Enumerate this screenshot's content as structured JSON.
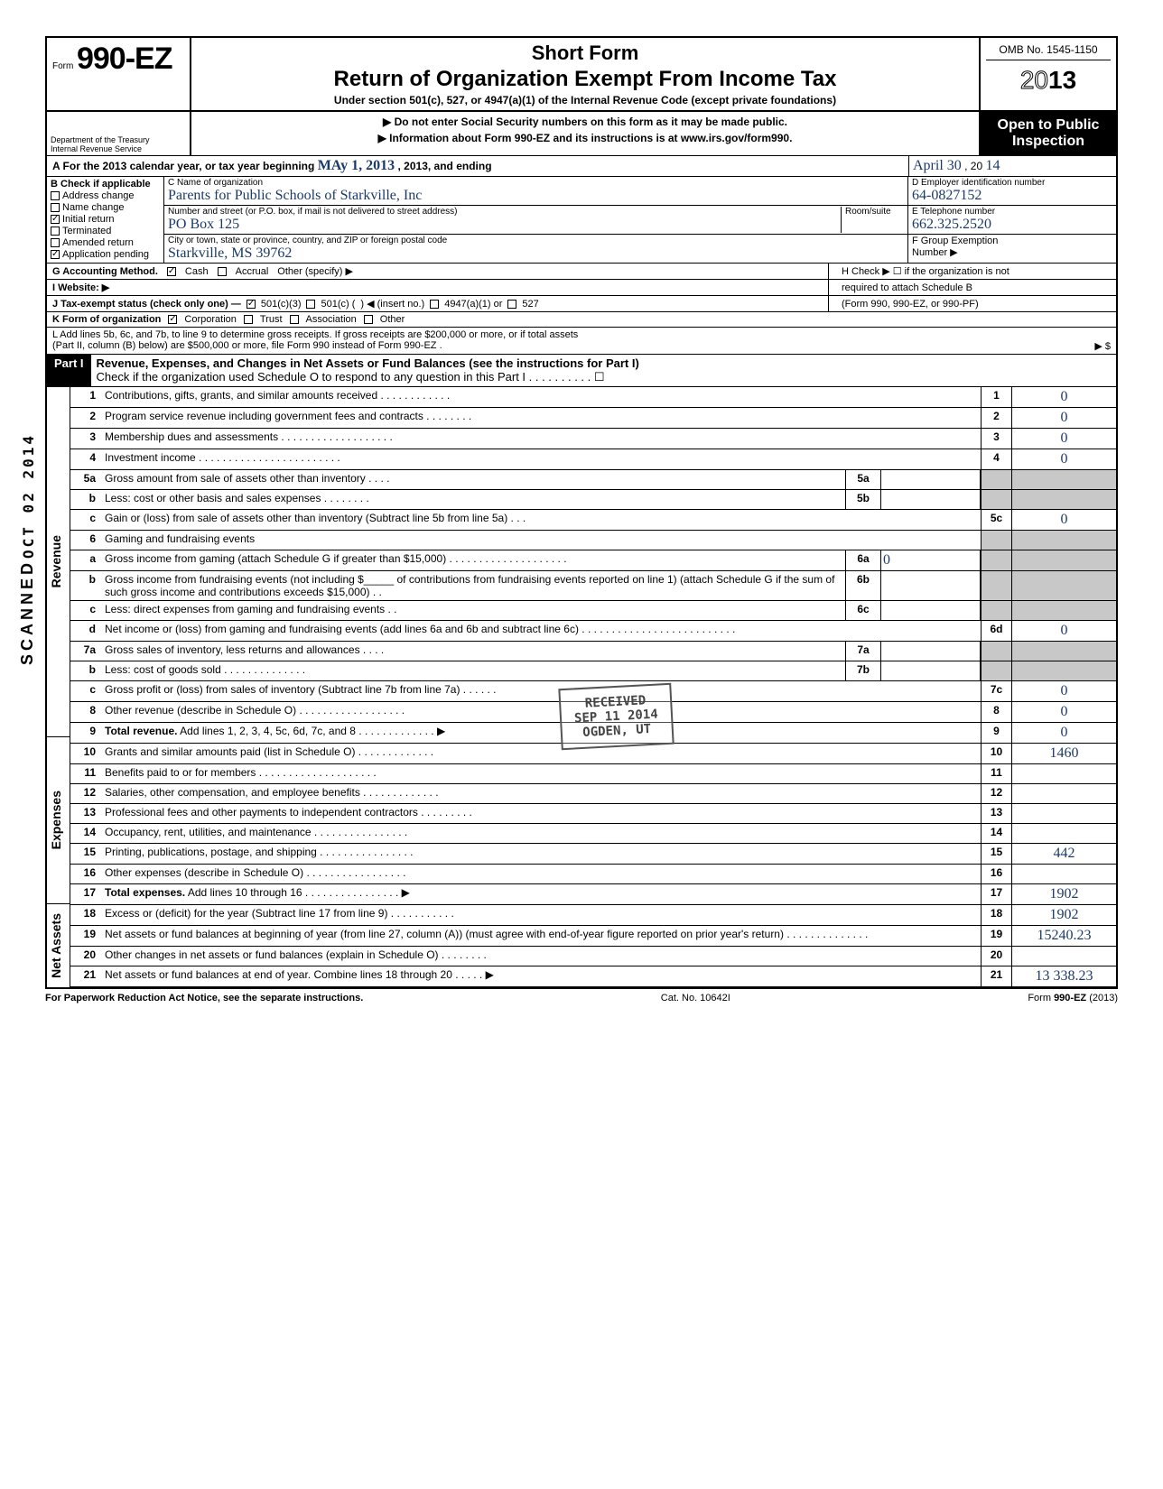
{
  "header": {
    "form_prefix": "Form",
    "form_number": "990-EZ",
    "short_form": "Short Form",
    "main_title": "Return of Organization Exempt From Income Tax",
    "subtitle": "Under section 501(c), 527, or 4947(a)(1) of the Internal Revenue Code (except private foundations)",
    "omb": "OMB No. 1545-1150",
    "year": "2013",
    "do_not_enter": "▶ Do not enter Social Security numbers on this form as it may be made public.",
    "info_about": "▶ Information about Form 990-EZ and its instructions is at www.irs.gov/form990.",
    "dept1": "Department of the Treasury",
    "dept2": "Internal Revenue Service",
    "open1": "Open to Public",
    "open2": "Inspection"
  },
  "section_a": {
    "label": "A For the 2013 calendar year, or tax year beginning",
    "begin_hw": "MAy 1, 2013",
    "mid": ", 2013, and ending",
    "end_hw": "April 30",
    "end_year": ", 20",
    "end_year_hw": "14"
  },
  "section_b": {
    "header": "B Check if applicable",
    "items": [
      {
        "label": "Address change",
        "checked": false
      },
      {
        "label": "Name change",
        "checked": false
      },
      {
        "label": "Initial return",
        "checked": true
      },
      {
        "label": "Terminated",
        "checked": false
      },
      {
        "label": "Amended return",
        "checked": false
      },
      {
        "label": "Application pending",
        "checked": true
      }
    ]
  },
  "section_c": {
    "name_label": "C Name of organization",
    "name_hw": "Parents for Public Schools of Starkville, Inc",
    "addr_label": "Number and street (or P.O. box, if mail is not delivered to street address)",
    "room_label": "Room/suite",
    "addr_hw": "PO Box 125",
    "city_label": "City or town, state or province, country, and ZIP or foreign postal code",
    "city_hw": "Starkville, MS 39762"
  },
  "section_d": {
    "label": "D Employer identification number",
    "hw": "64-0827152"
  },
  "section_e": {
    "label": "E Telephone number",
    "hw": "662.325.2520"
  },
  "section_f": {
    "label": "F Group Exemption",
    "label2": "Number ▶"
  },
  "section_g": {
    "label": "G Accounting Method.",
    "cash": "Cash",
    "accrual": "Accrual",
    "other": "Other (specify) ▶"
  },
  "section_h": {
    "line1": "H Check ▶ ☐ if the organization is not",
    "line2": "required to attach Schedule B",
    "line3": "(Form 990, 990-EZ, or 990-PF)"
  },
  "section_i": {
    "label": "I Website: ▶"
  },
  "section_j": {
    "label": "J Tax-exempt status (check only one) —",
    "opt1": "501(c)(3)",
    "opt2": "501(c) (",
    "opt2b": ") ◀ (insert no.)",
    "opt3": "4947(a)(1) or",
    "opt4": "527"
  },
  "section_k": {
    "label": "K Form of organization",
    "corp": "Corporation",
    "trust": "Trust",
    "assoc": "Association",
    "other": "Other"
  },
  "section_l": {
    "line1": "L Add lines 5b, 6c, and 7b, to line 9 to determine gross receipts. If gross receipts are $200,000 or more, or if total assets",
    "line2": "(Part II, column (B) below) are $500,000 or more, file Form 990 instead of Form 990-EZ .",
    "arrow": "▶ $"
  },
  "part1": {
    "label": "Part I",
    "title": "Revenue, Expenses, and Changes in Net Assets or Fund Balances (see the instructions for Part I)",
    "check": "Check if the organization used Schedule O to respond to any question in this Part I . . . . . . . . . . ☐"
  },
  "side_labels": {
    "revenue": "Revenue",
    "expenses": "Expenses",
    "netassets": "Net Assets"
  },
  "lines": [
    {
      "n": "1",
      "desc": "Contributions, gifts, grants, and similar amounts received . . . . . . . . . . . .",
      "box": "1",
      "val": "0"
    },
    {
      "n": "2",
      "desc": "Program service revenue including government fees and contracts . . . . . . . .",
      "box": "2",
      "val": "0"
    },
    {
      "n": "3",
      "desc": "Membership dues and assessments . . . . . . . . . . . . . . . . . . .",
      "box": "3",
      "val": "0"
    },
    {
      "n": "4",
      "desc": "Investment income . . . . . . . . . . . . . . . . . . . . . . . .",
      "box": "4",
      "val": "0"
    },
    {
      "n": "5a",
      "desc": "Gross amount from sale of assets other than inventory . . . .",
      "sub": "5a",
      "subval": ""
    },
    {
      "n": "b",
      "desc": "Less: cost or other basis and sales expenses . . . . . . . .",
      "sub": "5b",
      "subval": ""
    },
    {
      "n": "c",
      "desc": "Gain or (loss) from sale of assets other than inventory (Subtract line 5b from line 5a) . . .",
      "box": "5c",
      "val": "0"
    },
    {
      "n": "6",
      "desc": "Gaming and fundraising events"
    },
    {
      "n": "a",
      "desc": "Gross income from gaming (attach Schedule G if greater than $15,000) . . . . . . . . . . . . . . . . . . . .",
      "sub": "6a",
      "subval": "0"
    },
    {
      "n": "b",
      "desc": "Gross income from fundraising events (not including $_____ of contributions from fundraising events reported on line 1) (attach Schedule G if the sum of such gross income and contributions exceeds $15,000) . .",
      "sub": "6b",
      "subval": ""
    },
    {
      "n": "c",
      "desc": "Less: direct expenses from gaming and fundraising events . .",
      "sub": "6c",
      "subval": ""
    },
    {
      "n": "d",
      "desc": "Net income or (loss) from gaming and fundraising events (add lines 6a and 6b and subtract line 6c) . . . . . . . . . . . . . . . . . . . . . . . . . .",
      "box": "6d",
      "val": "0"
    },
    {
      "n": "7a",
      "desc": "Gross sales of inventory, less returns and allowances . . . .",
      "sub": "7a",
      "subval": ""
    },
    {
      "n": "b",
      "desc": "Less: cost of goods sold . . . . . . . . . . . . . .",
      "sub": "7b",
      "subval": ""
    },
    {
      "n": "c",
      "desc": "Gross profit or (loss) from sales of inventory (Subtract line 7b from line 7a) . . . . . .",
      "box": "7c",
      "val": "0"
    },
    {
      "n": "8",
      "desc": "Other revenue (describe in Schedule O) . . . . . . . . . . . . . . . . . .",
      "box": "8",
      "val": "0"
    },
    {
      "n": "9",
      "desc": "Total revenue. Add lines 1, 2, 3, 4, 5c, 6d, 7c, and 8 . . . . . . . . . . . . . ▶",
      "box": "9",
      "val": "0",
      "bold": true
    },
    {
      "n": "10",
      "desc": "Grants and similar amounts paid (list in Schedule O) . . . . . . . . . . . . .",
      "box": "10",
      "val": "1460"
    },
    {
      "n": "11",
      "desc": "Benefits paid to or for members . . . . . . . . . . . . . . . . . . . .",
      "box": "11",
      "val": ""
    },
    {
      "n": "12",
      "desc": "Salaries, other compensation, and employee benefits . . . . . . . . . . . . .",
      "box": "12",
      "val": ""
    },
    {
      "n": "13",
      "desc": "Professional fees and other payments to independent contractors . . . . . . . . .",
      "box": "13",
      "val": ""
    },
    {
      "n": "14",
      "desc": "Occupancy, rent, utilities, and maintenance . . . . . . . . . . . . . . . .",
      "box": "14",
      "val": ""
    },
    {
      "n": "15",
      "desc": "Printing, publications, postage, and shipping . . . . . . . . . . . . . . . .",
      "box": "15",
      "val": "442"
    },
    {
      "n": "16",
      "desc": "Other expenses (describe in Schedule O) . . . . . . . . . . . . . . . . .",
      "box": "16",
      "val": ""
    },
    {
      "n": "17",
      "desc": "Total expenses. Add lines 10 through 16 . . . . . . . . . . . . . . . . ▶",
      "box": "17",
      "val": "1902",
      "bold": true
    },
    {
      "n": "18",
      "desc": "Excess or (deficit) for the year (Subtract line 17 from line 9) . . . . . . . . . . .",
      "box": "18",
      "val": "1902"
    },
    {
      "n": "19",
      "desc": "Net assets or fund balances at beginning of year (from line 27, column (A)) (must agree with end-of-year figure reported on prior year's return) . . . . . . . . . . . . . .",
      "box": "19",
      "val": "15240.23"
    },
    {
      "n": "20",
      "desc": "Other changes in net assets or fund balances (explain in Schedule O) . . . . . . . .",
      "box": "20",
      "val": ""
    },
    {
      "n": "21",
      "desc": "Net assets or fund balances at end of year. Combine lines 18 through 20 . . . . . ▶",
      "box": "21",
      "val": "13 338.23"
    }
  ],
  "footer": {
    "left": "For Paperwork Reduction Act Notice, see the separate instructions.",
    "mid": "Cat. No. 10642I",
    "right": "Form 990-EZ (2013)"
  },
  "stamps": {
    "received": "RECEIVED",
    "date": "SEP 11 2014",
    "ogden": "OGDEN, UT",
    "scanned": "SCANNED",
    "oct": "OCT 02 2014"
  },
  "colors": {
    "ink": "#1a3a6a",
    "black": "#000000",
    "shade": "#c8c8c8"
  }
}
